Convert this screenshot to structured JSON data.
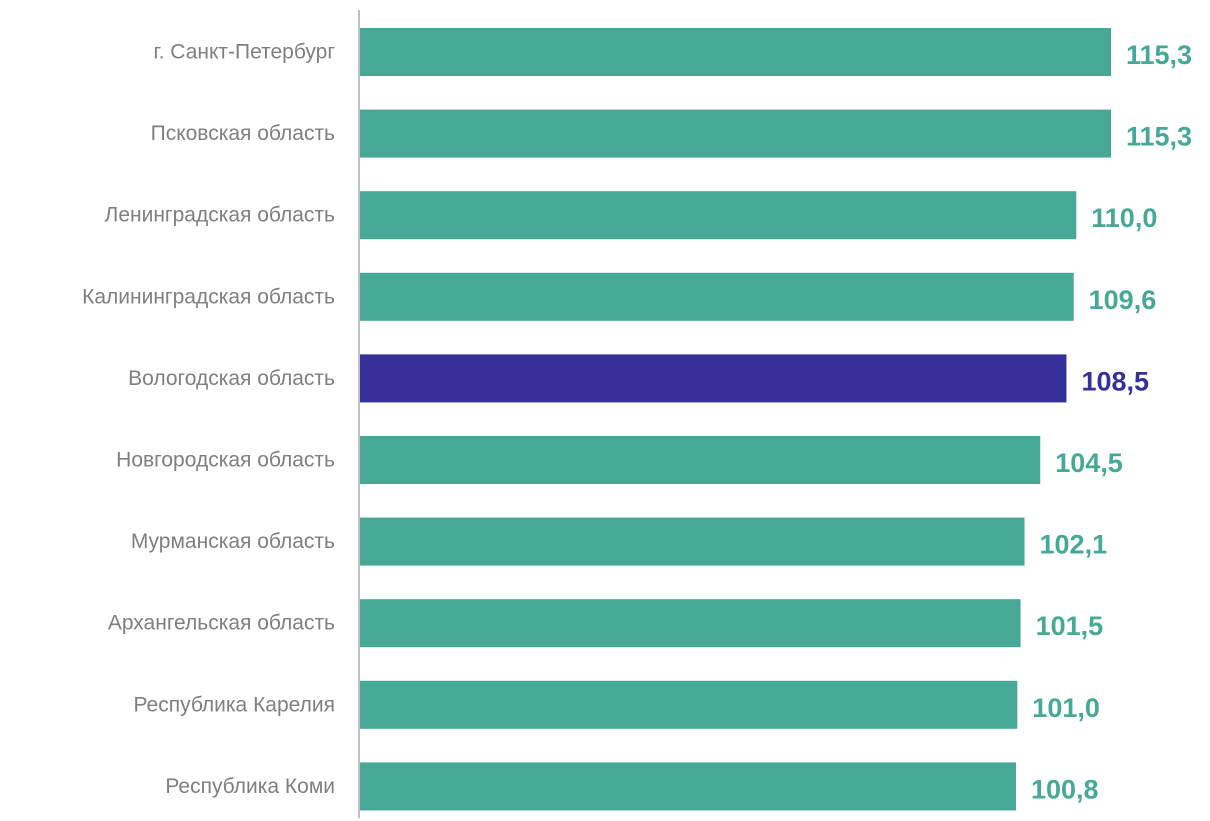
{
  "chart_data": {
    "type": "bar",
    "orientation": "horizontal",
    "categories": [
      "г. Санкт-Петербург",
      "Псковская область",
      "Ленинградская область",
      "Калининградская область",
      "Вологодская область",
      "Новгородская область",
      "Мурманская область",
      "Архангельская область",
      "Республика Карелия",
      "Республика Коми"
    ],
    "values": [
      115.3,
      115.3,
      110.0,
      109.6,
      108.5,
      104.5,
      102.1,
      101.5,
      101.0,
      100.8
    ],
    "value_labels": [
      "115,3",
      "115,3",
      "110,0",
      "109,6",
      "108,5",
      "104,5",
      "102,1",
      "101,5",
      "101,0",
      "100,8"
    ],
    "highlight_category": "Вологодская область",
    "colors": {
      "bar": "#45a996",
      "highlight": "#35309a",
      "label": "#7f7f7f",
      "axis": "#bfbfbf"
    },
    "title": "",
    "xlabel": "",
    "ylabel": "",
    "grid": false,
    "legend": "none"
  }
}
